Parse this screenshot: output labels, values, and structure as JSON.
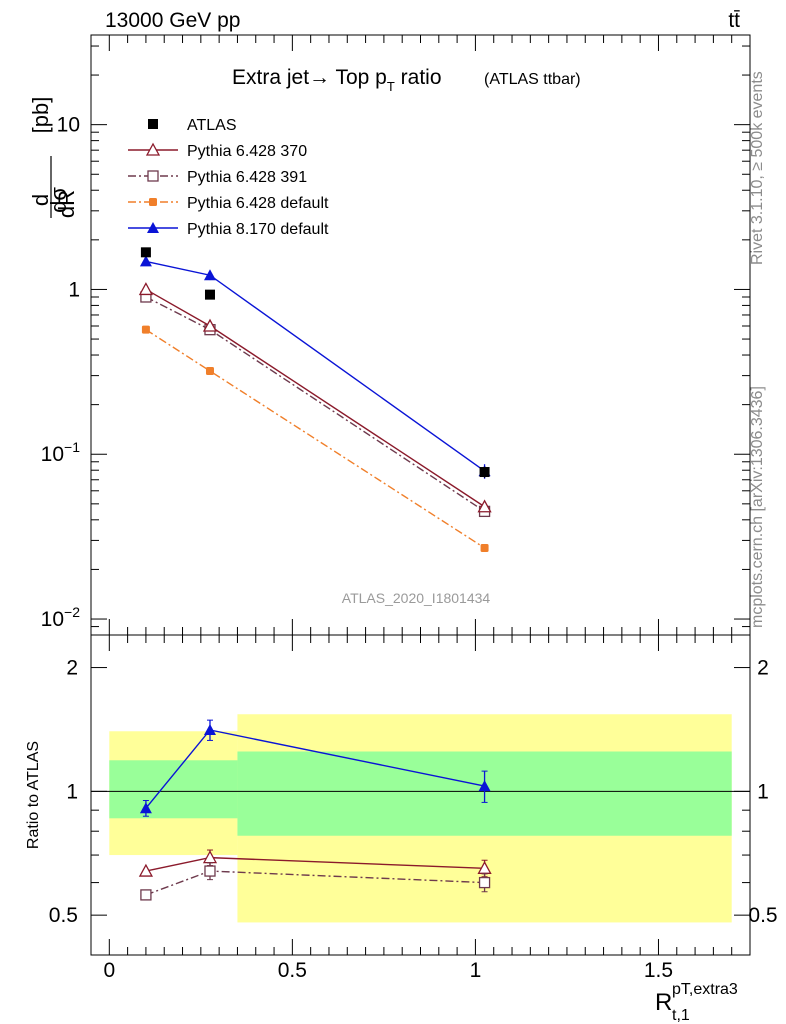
{
  "header": {
    "energy_label": "13000 GeV pp",
    "process_label": "tt̄"
  },
  "side_labels": {
    "rivet": "Rivet 3.1.10, ≥ 500k events",
    "mcplots": "mcplots.cern.ch [arXiv:1306.3436]"
  },
  "chart_data": [
    {
      "type": "line",
      "panel": "main",
      "title": "Extra jet → Top p_T ratio",
      "title_main": "Extra jet→ Top p",
      "title_sub": "T",
      "title_tail": " ratio",
      "title_note": "(ATLAS ttbar)",
      "ylabel": "dσ/dR [pb]",
      "ylabel_unit": "[pb]",
      "yscale": "log",
      "ylim": [
        0.008,
        35
      ],
      "xlim": [
        -0.05,
        1.75
      ],
      "y_ticks": [
        {
          "value": 0.01,
          "base": "10",
          "exp": "−2"
        },
        {
          "value": 0.1,
          "base": "10",
          "exp": "−1"
        },
        {
          "value": 1,
          "base": "1",
          "exp": ""
        },
        {
          "value": 10,
          "base": "10",
          "exp": ""
        }
      ],
      "watermark": "ATLAS_2020_I1801434",
      "legend": [
        {
          "name": "ATLAS",
          "color": "#000000",
          "marker": "square-filled",
          "line": "none"
        },
        {
          "name": "Pythia 6.428 370",
          "color": "#8b1a2b",
          "marker": "triangle-open",
          "line": "solid"
        },
        {
          "name": "Pythia 6.428 391",
          "color": "#6e3a4d",
          "marker": "square-open",
          "line": "dashdot"
        },
        {
          "name": "Pythia 6.428 default",
          "color": "#f07f2a",
          "marker": "circle-filled",
          "line": "dashdot"
        },
        {
          "name": "Pythia 8.170 default",
          "color": "#0a14d6",
          "marker": "triangle-filled",
          "line": "solid"
        }
      ],
      "series": [
        {
          "name": "ATLAS",
          "x": [
            0.1,
            0.275,
            1.025
          ],
          "y": [
            1.68,
            0.93,
            0.078
          ],
          "yerr": [
            0.0,
            0.0,
            0.006
          ]
        },
        {
          "name": "Pythia 6.428 370",
          "x": [
            0.1,
            0.275,
            1.025
          ],
          "y": [
            1.0,
            0.6,
            0.048
          ]
        },
        {
          "name": "Pythia 6.428 391",
          "x": [
            0.1,
            0.275,
            1.025
          ],
          "y": [
            0.9,
            0.57,
            0.045
          ]
        },
        {
          "name": "Pythia 6.428 default",
          "x": [
            0.1,
            0.275,
            1.025
          ],
          "y": [
            0.57,
            0.32,
            0.027
          ]
        },
        {
          "name": "Pythia 8.170 default",
          "x": [
            0.1,
            0.275,
            1.025
          ],
          "y": [
            1.48,
            1.22,
            0.079
          ],
          "yerr": [
            0.04,
            0.08,
            0.008
          ]
        }
      ]
    },
    {
      "type": "line",
      "panel": "ratio",
      "ylabel": "Ratio to ATLAS",
      "yscale": "log",
      "ylim": [
        0.4,
        2.4
      ],
      "xlim": [
        -0.05,
        1.75
      ],
      "xlabel": "R",
      "xlabel_sup": "pT,extra3",
      "xlabel_sub": "t,1",
      "x_ticks": [
        {
          "value": 0,
          "label": "0"
        },
        {
          "value": 0.5,
          "label": "0.5"
        },
        {
          "value": 1,
          "label": "1"
        },
        {
          "value": 1.5,
          "label": "1.5"
        }
      ],
      "y_ticks": [
        {
          "value": 0.5,
          "label": "0.5"
        },
        {
          "value": 1,
          "label": "1"
        },
        {
          "value": 2,
          "label": "2"
        }
      ],
      "bands": {
        "edges": [
          0.0,
          0.35,
          1.7
        ],
        "stat_lo": [
          0.86,
          0.78
        ],
        "stat_hi": [
          1.19,
          1.25
        ],
        "total_lo": [
          0.7,
          0.48
        ],
        "total_hi": [
          1.4,
          1.54
        ],
        "stat_color": "#99ff99",
        "total_color": "#ffff99"
      },
      "series": [
        {
          "name": "Pythia 6.428 370",
          "x": [
            0.1,
            0.275,
            1.025
          ],
          "y": [
            0.64,
            0.69,
            0.65
          ],
          "yerr": [
            0.0,
            0.03,
            0.03
          ]
        },
        {
          "name": "Pythia 6.428 391",
          "x": [
            0.1,
            0.275,
            1.025
          ],
          "y": [
            0.56,
            0.64,
            0.6
          ],
          "yerr": [
            0.0,
            0.03,
            0.03
          ]
        },
        {
          "name": "Pythia 8.170 default",
          "x": [
            0.1,
            0.275,
            1.025
          ],
          "y": [
            0.91,
            1.41,
            1.03
          ],
          "yerr": [
            0.04,
            0.08,
            0.09
          ]
        }
      ]
    }
  ]
}
